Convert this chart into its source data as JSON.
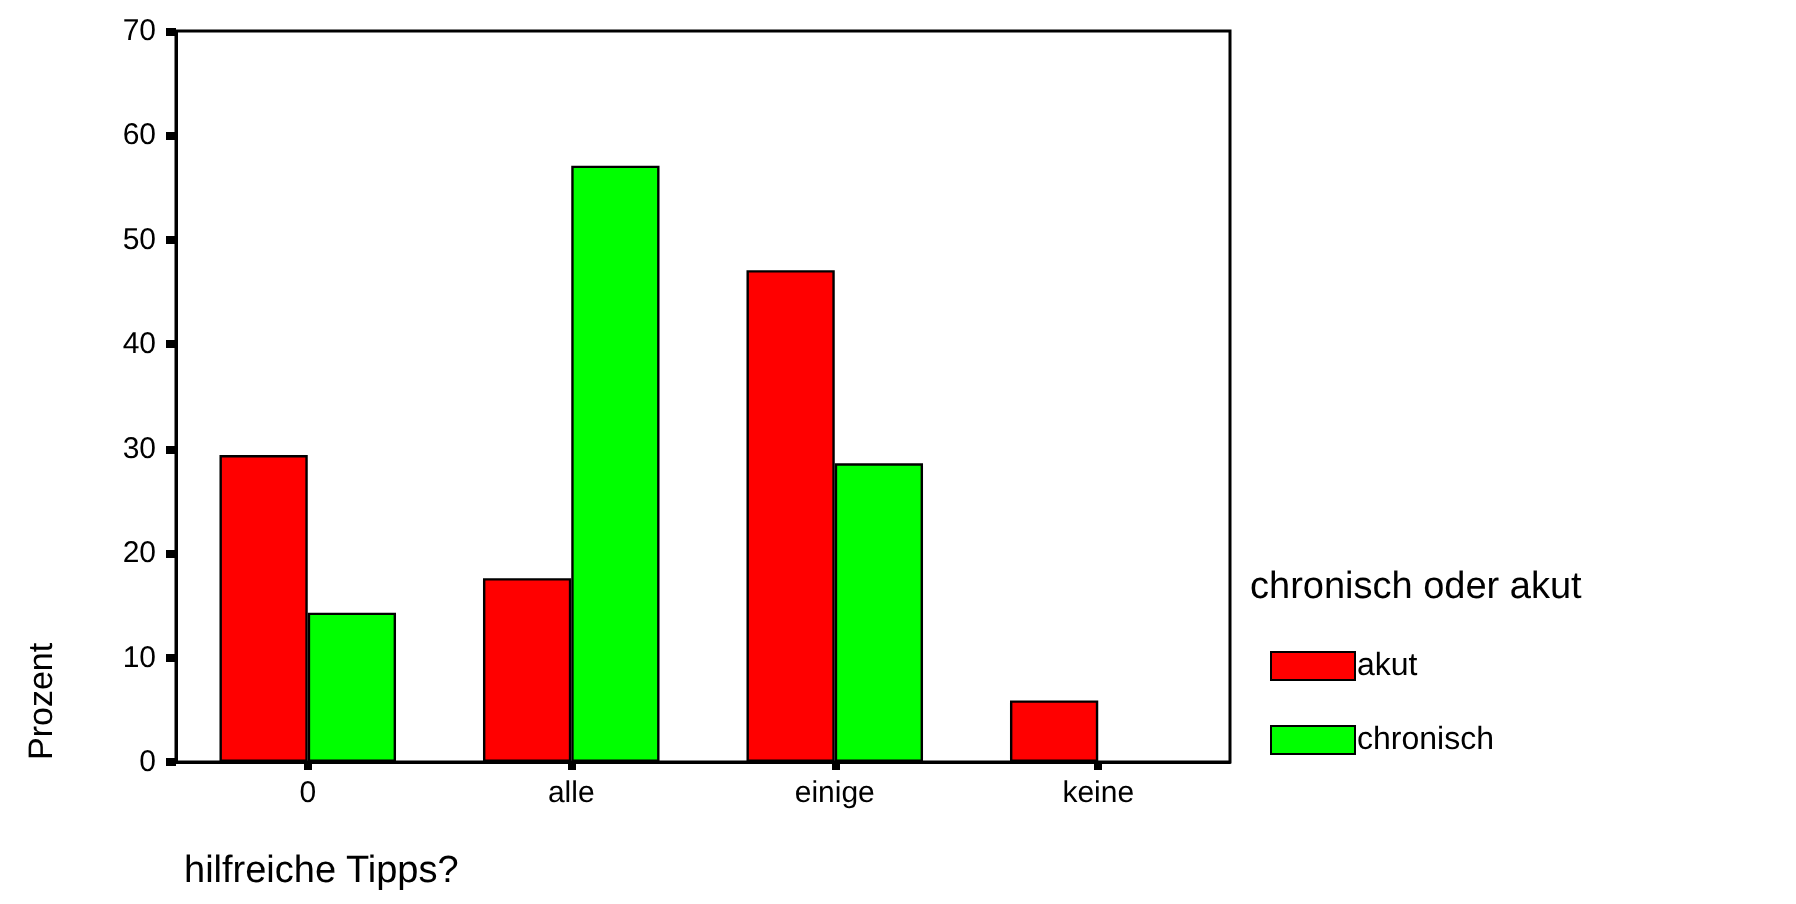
{
  "chart_data": {
    "type": "bar",
    "xlabel": "hilfreiche Tipps?",
    "ylabel": "Prozent",
    "legend_title": "chronisch oder akut",
    "categories": [
      "0",
      "alle",
      "einige",
      "keine"
    ],
    "series": [
      {
        "name": "akut",
        "color": "#ff0000",
        "values": [
          29.4,
          17.6,
          47.1,
          5.9
        ]
      },
      {
        "name": "chronisch",
        "color": "#00ff00",
        "values": [
          14.3,
          57.1,
          28.6,
          null
        ]
      }
    ],
    "ylim": [
      0,
      70
    ],
    "yticks": [
      0,
      10,
      20,
      30,
      40,
      50,
      60,
      70
    ],
    "grid": false,
    "legend": "right"
  }
}
